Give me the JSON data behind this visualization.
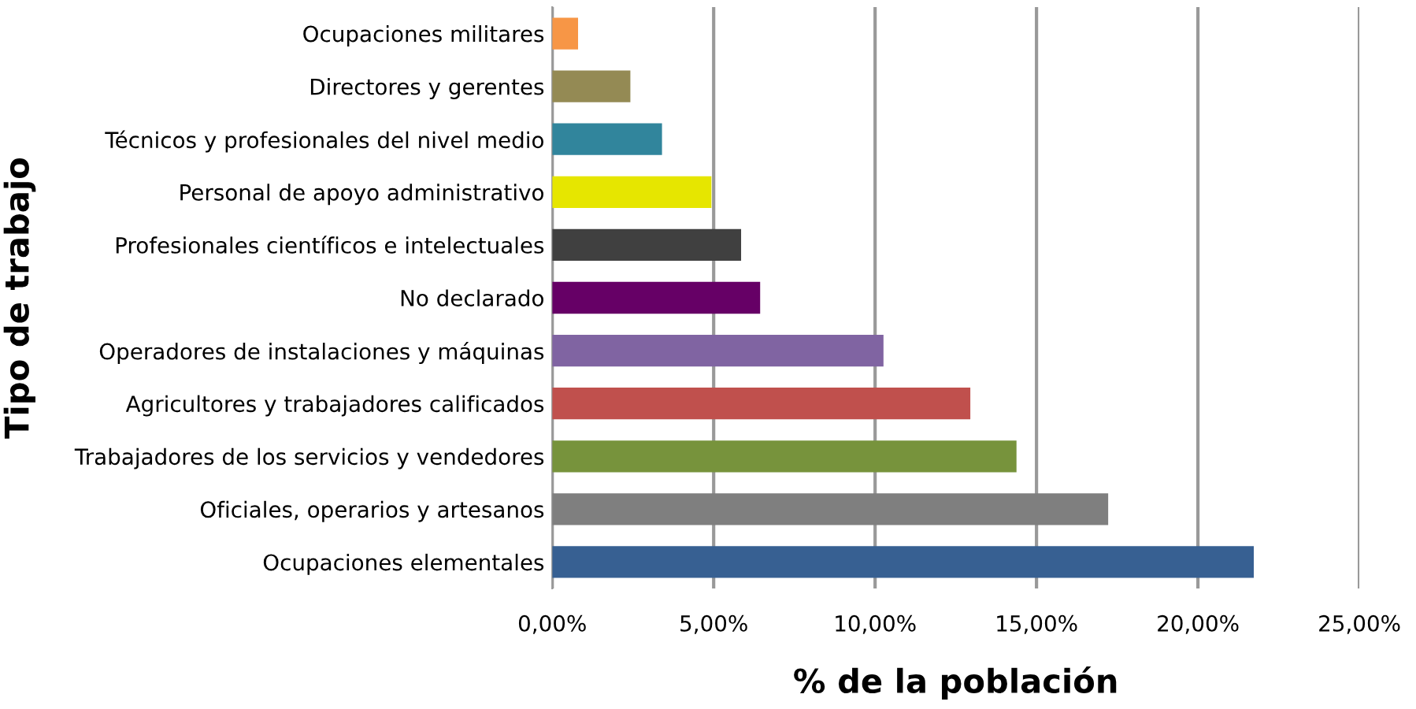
{
  "chart_data": {
    "type": "bar",
    "orientation": "horizontal",
    "xlabel": "% de la población",
    "ylabel": "Tipo de trabajo",
    "categories": [
      "Ocupaciones militares",
      "Directores y gerentes",
      "Técnicos y profesionales del nivel medio",
      "Personal de apoyo administrativo",
      "Profesionales científicos e intelectuales",
      "No declarado",
      "Operadores de instalaciones y máquinas",
      "Agricultores y trabajadores calificados",
      "Trabajadores de los servicios y vendedores",
      "Oficiales, operarios y artesanos",
      "Ocupaciones elementales"
    ],
    "values": [
      0.8,
      2.42,
      3.4,
      4.93,
      5.85,
      6.44,
      10.26,
      12.95,
      14.38,
      17.22,
      21.73
    ],
    "colors": [
      "#f79646",
      "#948a54",
      "#31859c",
      "#e6e600",
      "#404040",
      "#660066",
      "#8064a2",
      "#c0504d",
      "#77933c",
      "#7f7f7f",
      "#376092"
    ],
    "xlim": [
      0,
      25
    ],
    "xticks": [
      {
        "value": 0,
        "label": "0,00%"
      },
      {
        "value": 5,
        "label": "5,00%"
      },
      {
        "value": 10,
        "label": "10,00%"
      },
      {
        "value": 15,
        "label": "15,00%"
      },
      {
        "value": 20,
        "label": "20,00%"
      },
      {
        "value": 25,
        "label": "25,00%"
      }
    ],
    "grid": "x",
    "legend": false
  }
}
